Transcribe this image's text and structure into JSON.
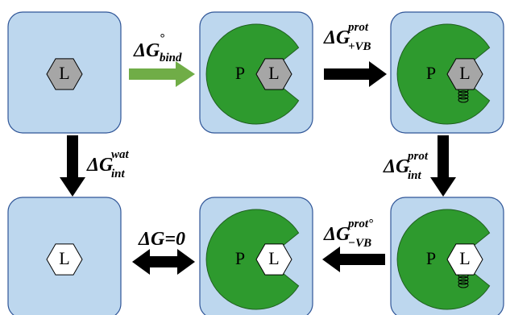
{
  "nodes": [
    {
      "label": "L"
    },
    {
      "protein": "P",
      "label": "L"
    },
    {
      "protein": "P",
      "label": "L"
    },
    {
      "label": "L"
    },
    {
      "protein": "P",
      "label": "L"
    },
    {
      "protein": "P",
      "label": "L"
    }
  ],
  "edges": [
    {
      "main": "ΔG",
      "sup": "°",
      "sub": "bind"
    },
    {
      "main": "ΔG",
      "sup": "prot",
      "sub": "+VB"
    },
    {
      "main": "ΔG",
      "sup": "wat",
      "sub": "int"
    },
    {
      "main": "ΔG",
      "sup": "prot",
      "sub": "int"
    },
    {
      "main": "ΔG",
      "sup": "prot°",
      "sub": "−VB"
    },
    {
      "main": "ΔG=0"
    }
  ]
}
